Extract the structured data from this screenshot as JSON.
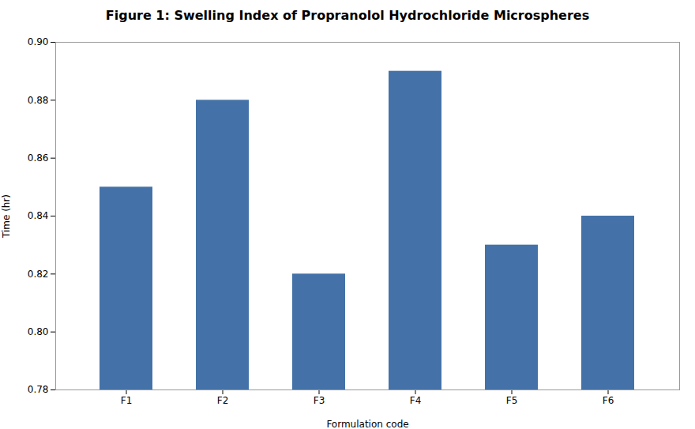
{
  "chart_data": {
    "type": "bar",
    "title": "Figure 1: Swelling Index of Propranolol Hydrochloride Microspheres",
    "xlabel": "Formulation code",
    "ylabel": "Time (hr)",
    "categories": [
      "F1",
      "F2",
      "F3",
      "F4",
      "F5",
      "F6"
    ],
    "values": [
      0.85,
      0.88,
      0.82,
      0.89,
      0.83,
      0.84
    ],
    "color": "#4472a8",
    "ylim": [
      0.78,
      0.9
    ],
    "yticks": [
      0.78,
      {
        "value": 0.8,
        "label": "0.80"
      },
      0.82,
      0.84,
      0.86,
      0.88,
      {
        "value": 0.9,
        "label": "0.90"
      }
    ],
    "grid": false
  }
}
